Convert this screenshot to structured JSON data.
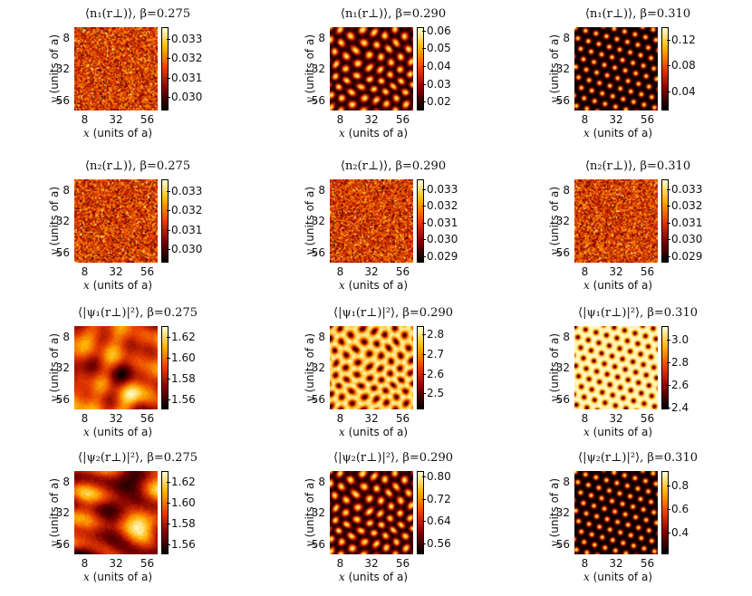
{
  "chart_data": [
    {
      "type": "heatmap",
      "title": "⟨n₁(r⊥)⟩, β=0.275",
      "quantity": "n1",
      "beta": 0.275,
      "pattern": "noise",
      "xlabel_var": "x",
      "xlabel_unit": "(units of a)",
      "ylabel_var": "y",
      "ylabel_unit": "(units of a)",
      "xticks": [
        "8",
        "32",
        "56"
      ],
      "yticks": [
        "8",
        "32",
        "56"
      ],
      "axis_range": [
        0,
        64
      ],
      "colorbar_ticks": [
        "0.033",
        "0.032",
        "0.031",
        "0.030"
      ],
      "color_range": [
        0.0293,
        0.0336
      ]
    },
    {
      "type": "heatmap",
      "title": "⟨n₁(r⊥)⟩, β=0.290",
      "quantity": "n1",
      "beta": 0.29,
      "pattern": "blobs",
      "xlabel_var": "x",
      "xlabel_unit": "(units of a)",
      "ylabel_var": "y",
      "ylabel_unit": "(units of a)",
      "xticks": [
        "8",
        "32",
        "56"
      ],
      "yticks": [
        "8",
        "32",
        "56"
      ],
      "axis_range": [
        0,
        64
      ],
      "colorbar_ticks": [
        "0.06",
        "0.05",
        "0.04",
        "0.03",
        "0.02"
      ],
      "color_range": [
        0.015,
        0.062
      ]
    },
    {
      "type": "heatmap",
      "title": "⟨n₁(r⊥)⟩, β=0.310",
      "quantity": "n1",
      "beta": 0.31,
      "pattern": "lattice",
      "xlabel_var": "x",
      "xlabel_unit": "(units of a)",
      "ylabel_var": "y",
      "ylabel_unit": "(units of a)",
      "xticks": [
        "8",
        "32",
        "56"
      ],
      "yticks": [
        "8",
        "32",
        "56"
      ],
      "axis_range": [
        0,
        64
      ],
      "colorbar_ticks": [
        "0.12",
        "0.08",
        "0.04"
      ],
      "color_range": [
        0.01,
        0.14
      ]
    },
    {
      "type": "heatmap",
      "title": "⟨n₂(r⊥)⟩, β=0.275",
      "quantity": "n2",
      "beta": 0.275,
      "pattern": "noise",
      "xlabel_var": "x",
      "xlabel_unit": "(units of a)",
      "ylabel_var": "y",
      "ylabel_unit": "(units of a)",
      "xticks": [
        "8",
        "32",
        "56"
      ],
      "yticks": [
        "8",
        "32",
        "56"
      ],
      "axis_range": [
        0,
        64
      ],
      "colorbar_ticks": [
        "0.033",
        "0.032",
        "0.031",
        "0.030"
      ],
      "color_range": [
        0.0293,
        0.0336
      ]
    },
    {
      "type": "heatmap",
      "title": "⟨n₂(r⊥)⟩, β=0.290",
      "quantity": "n2",
      "beta": 0.29,
      "pattern": "noise",
      "xlabel_var": "x",
      "xlabel_unit": "(units of a)",
      "ylabel_var": "y",
      "ylabel_unit": "(units of a)",
      "xticks": [
        "8",
        "32",
        "56"
      ],
      "yticks": [
        "8",
        "32",
        "56"
      ],
      "axis_range": [
        0,
        64
      ],
      "colorbar_ticks": [
        "0.033",
        "0.032",
        "0.031",
        "0.030",
        "0.029"
      ],
      "color_range": [
        0.0286,
        0.0336
      ]
    },
    {
      "type": "heatmap",
      "title": "⟨n₂(r⊥)⟩, β=0.310",
      "quantity": "n2",
      "beta": 0.31,
      "pattern": "noise",
      "xlabel_var": "x",
      "xlabel_unit": "(units of a)",
      "ylabel_var": "y",
      "ylabel_unit": "(units of a)",
      "xticks": [
        "8",
        "32",
        "56"
      ],
      "yticks": [
        "8",
        "32",
        "56"
      ],
      "axis_range": [
        0,
        64
      ],
      "colorbar_ticks": [
        "0.033",
        "0.032",
        "0.031",
        "0.030",
        "0.029"
      ],
      "color_range": [
        0.0286,
        0.0336
      ]
    },
    {
      "type": "heatmap",
      "title": "⟨|ψ₁(r⊥)|²⟩, β=0.275",
      "quantity": "psi1_sq",
      "beta": 0.275,
      "pattern": "clouds",
      "xlabel_var": "x",
      "xlabel_unit": "(units of a)",
      "ylabel_var": "y",
      "ylabel_unit": "(units of a)",
      "xticks": [
        "8",
        "32",
        "56"
      ],
      "yticks": [
        "8",
        "32",
        "56"
      ],
      "axis_range": [
        0,
        64
      ],
      "colorbar_ticks": [
        "1.62",
        "1.60",
        "1.58",
        "1.56"
      ],
      "color_range": [
        1.55,
        1.63
      ]
    },
    {
      "type": "heatmap",
      "title": "⟨|ψ₁(r⊥)|²⟩, β=0.290",
      "quantity": "psi1_sq",
      "beta": 0.29,
      "pattern": "inv_blobs",
      "xlabel_var": "x",
      "xlabel_unit": "(units of a)",
      "ylabel_var": "y",
      "ylabel_unit": "(units of a)",
      "xticks": [
        "8",
        "32",
        "56"
      ],
      "yticks": [
        "8",
        "32",
        "56"
      ],
      "axis_range": [
        0,
        64
      ],
      "colorbar_ticks": [
        "2.8",
        "2.7",
        "2.6",
        "2.5"
      ],
      "color_range": [
        2.42,
        2.84
      ]
    },
    {
      "type": "heatmap",
      "title": "⟨|ψ₁(r⊥)|²⟩, β=0.310",
      "quantity": "psi1_sq",
      "beta": 0.31,
      "pattern": "inv_lattice",
      "xlabel_var": "x",
      "xlabel_unit": "(units of a)",
      "ylabel_var": "y",
      "ylabel_unit": "(units of a)",
      "xticks": [
        "8",
        "32",
        "56"
      ],
      "yticks": [
        "8",
        "32",
        "56"
      ],
      "axis_range": [
        0,
        64
      ],
      "colorbar_ticks": [
        "3.0",
        "2.8",
        "2.6",
        "2.4"
      ],
      "color_range": [
        2.38,
        3.12
      ]
    },
    {
      "type": "heatmap",
      "title": "⟨|ψ₂(r⊥)|²⟩, β=0.275",
      "quantity": "psi2_sq",
      "beta": 0.275,
      "pattern": "clouds",
      "xlabel_var": "x",
      "xlabel_unit": "(units of a)",
      "ylabel_var": "y",
      "ylabel_unit": "(units of a)",
      "xticks": [
        "8",
        "32",
        "56"
      ],
      "yticks": [
        "8",
        "32",
        "56"
      ],
      "axis_range": [
        0,
        64
      ],
      "colorbar_ticks": [
        "1.62",
        "1.60",
        "1.58",
        "1.56"
      ],
      "color_range": [
        1.55,
        1.63
      ]
    },
    {
      "type": "heatmap",
      "title": "⟨|ψ₂(r⊥)|²⟩, β=0.290",
      "quantity": "psi2_sq",
      "beta": 0.29,
      "pattern": "blobs",
      "xlabel_var": "x",
      "xlabel_unit": "(units of a)",
      "ylabel_var": "y",
      "ylabel_unit": "(units of a)",
      "xticks": [
        "8",
        "32",
        "56"
      ],
      "yticks": [
        "8",
        "32",
        "56"
      ],
      "axis_range": [
        0,
        64
      ],
      "colorbar_ticks": [
        "0.80",
        "0.72",
        "0.64",
        "0.56"
      ],
      "color_range": [
        0.52,
        0.82
      ]
    },
    {
      "type": "heatmap",
      "title": "⟨|ψ₂(r⊥)|²⟩, β=0.310",
      "quantity": "psi2_sq",
      "beta": 0.31,
      "pattern": "lattice",
      "xlabel_var": "x",
      "xlabel_unit": "(units of a)",
      "ylabel_var": "y",
      "ylabel_unit": "(units of a)",
      "xticks": [
        "8",
        "32",
        "56"
      ],
      "yticks": [
        "8",
        "32",
        "56"
      ],
      "axis_range": [
        0,
        64
      ],
      "colorbar_ticks": [
        "0.8",
        "0.6",
        "0.4"
      ],
      "color_range": [
        0.22,
        0.92
      ]
    }
  ]
}
